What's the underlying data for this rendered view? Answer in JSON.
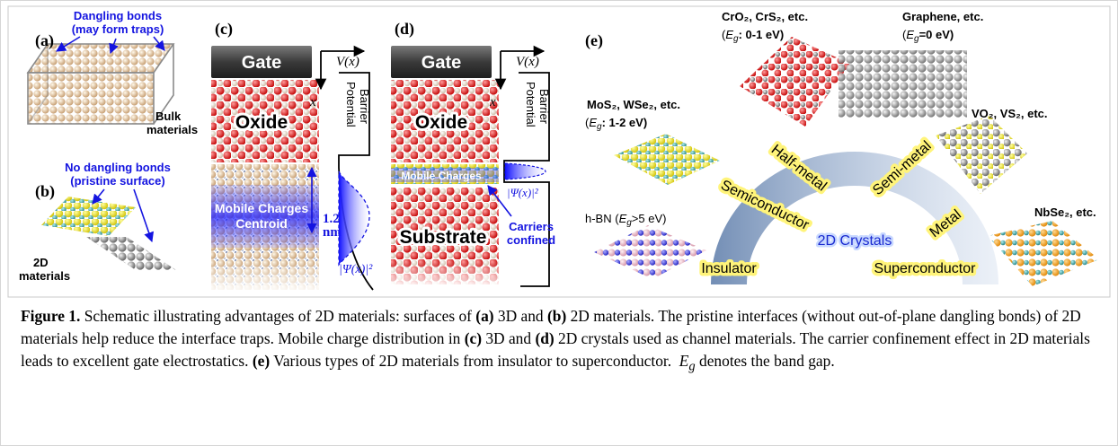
{
  "panel_a": {
    "label": "(a)",
    "note": [
      "Dangling bonds",
      "(may form traps)"
    ],
    "material": [
      "Bulk",
      "materials"
    ]
  },
  "panel_b": {
    "label": "(b)",
    "note": [
      "No dangling bonds",
      "(pristine surface)"
    ],
    "material": [
      "2D",
      "materials"
    ]
  },
  "panel_c": {
    "label": "(c)",
    "gate": "Gate",
    "potential_axis": "V(x)",
    "depth_axis": "x",
    "barrier": [
      "Potential",
      "Barrier"
    ],
    "oxide": "Oxide",
    "charges": [
      "Mobile Charges",
      "Centroid"
    ],
    "thickness": [
      "1.2",
      "nm"
    ],
    "wavefunction": "|Ψ(x)|²"
  },
  "panel_d": {
    "label": "(d)",
    "gate": "Gate",
    "potential_axis": "V(x)",
    "depth_axis": "x",
    "barrier": [
      "Potential",
      "Barrier"
    ],
    "oxide": "Oxide",
    "charges": "Mobile Charges",
    "wavefunction": "|Ψ(x)|²",
    "substrate": "Substrate",
    "confined": [
      "Carriers",
      "confined"
    ]
  },
  "panel_e": {
    "label": "(e)",
    "materials": [
      {
        "name": "CrO₂, CrS₂, etc.",
        "gap": [
          "(",
          "E",
          "g",
          ": 0-1 eV)"
        ]
      },
      {
        "name": "Graphene, etc.",
        "gap": [
          "(",
          "E",
          "g",
          "=0 eV)"
        ]
      },
      {
        "name": "MoS₂, WSe₂, etc.",
        "gap": [
          "(",
          "E",
          "g",
          ": 1-2 eV)"
        ]
      },
      {
        "name": "VO₂, VS₂, etc."
      },
      {
        "name": [
          "h-BN (",
          "E",
          "g",
          ">5 eV)"
        ]
      },
      {
        "name": "NbSe₂, etc."
      }
    ],
    "classes": [
      "Half-metal",
      "Semi-metal",
      "Semiconductor",
      "Metal",
      "Insulator",
      "Superconductor"
    ],
    "center": "2D Crystals"
  },
  "caption": [
    "Figure 1.",
    " Schematic illustrating advantages of 2D materials: surfaces of ",
    "(a)",
    " 3D and ",
    "(b)",
    " 2D materials. The pristine interfaces (without out-of-plane dangling bonds) of 2D materials help reduce the interface traps. Mobile charge distribution in ",
    "(c)",
    " 3D and ",
    "(d)",
    " 2D crystals used as channel materials. The carrier confinement effect in 2D materials leads to excellent gate electrostatics. ",
    "(e)",
    " Various types of 2D materials from insulator to superconductor.  ",
    "E",
    "g",
    " denotes the band gap."
  ]
}
